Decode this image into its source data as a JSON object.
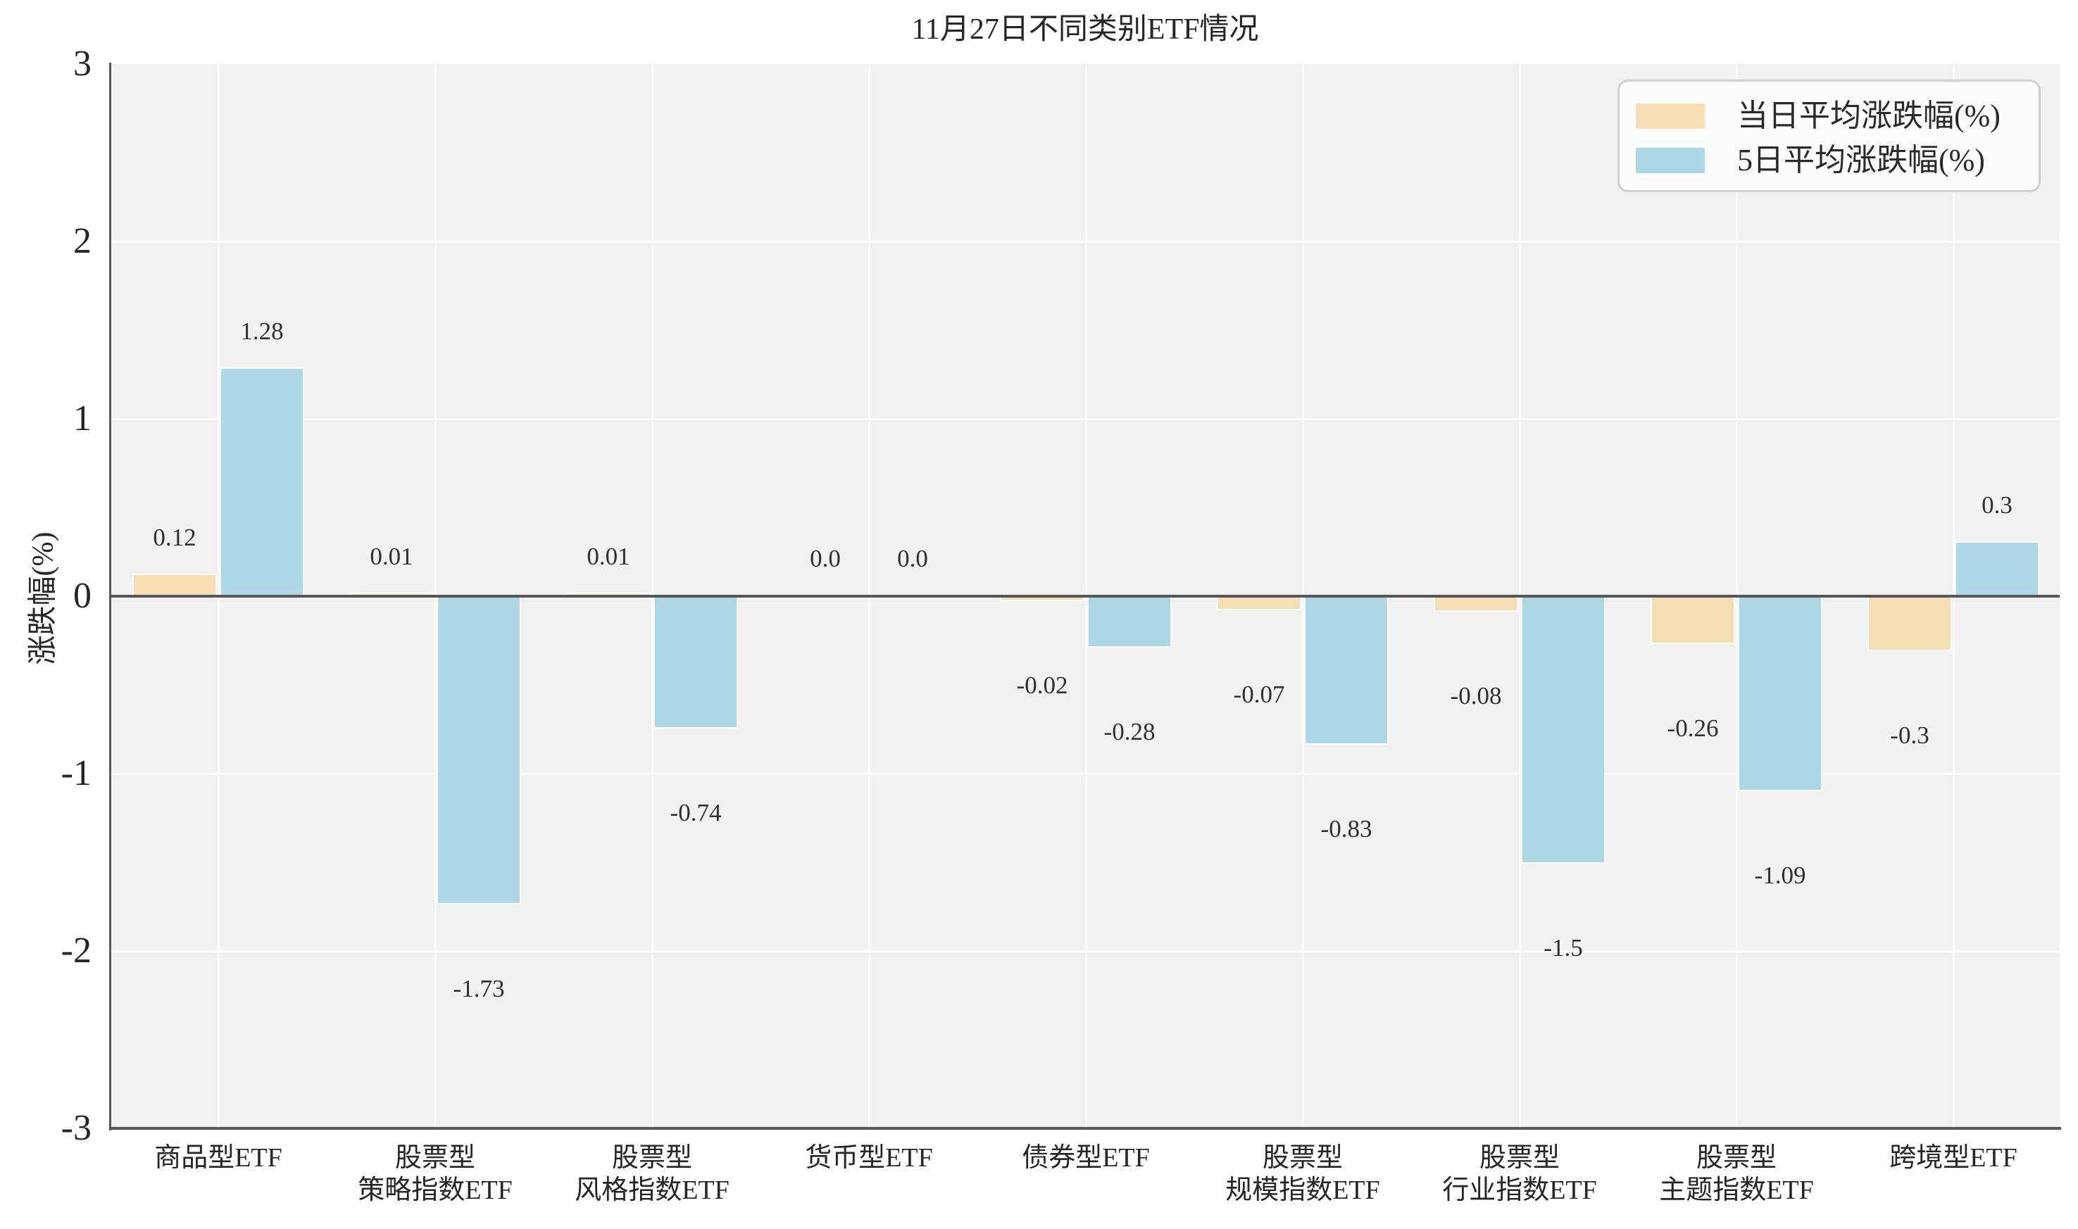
{
  "chart_data": {
    "type": "bar",
    "title": "11月27日不同类别ETF情况",
    "ylabel": "涨跌幅(%)",
    "xlabel": "",
    "ylim": [
      -3,
      3
    ],
    "yticks": [
      3,
      2,
      1,
      0,
      -1,
      -2,
      -3
    ],
    "ytick_labels": [
      "3",
      "2",
      "1",
      "0",
      "-1",
      "-2",
      "-3"
    ],
    "grid": true,
    "legend_position": "upper right",
    "colors": {
      "plot_background": "#f1f1f1",
      "gridline": "#fafafa",
      "spine": "#58585a",
      "series_daily": "#f5deb3",
      "series_5day": "#add8e6",
      "legend_border": "#d0d0d0",
      "legend_background": "#fcfcfc",
      "text": "#262626"
    },
    "categories": [
      "商品型ETF",
      "股票型\n策略指数ETF",
      "股票型\n风格指数ETF",
      "货币型ETF",
      "债券型ETF",
      "股票型\n规模指数ETF",
      "股票型\n行业指数ETF",
      "股票型\n主题指数ETF",
      "跨境型ETF"
    ],
    "series": [
      {
        "name": "当日平均涨跌幅(%)",
        "color": "#f5deb3",
        "values": [
          0.12,
          0.01,
          0.01,
          0.0,
          -0.02,
          -0.07,
          -0.08,
          -0.26,
          -0.3
        ],
        "labels": [
          "0.12",
          "0.01",
          "0.01",
          "0.0",
          "-0.02",
          "-0.07",
          "-0.08",
          "-0.26",
          "-0.3"
        ]
      },
      {
        "name": "5日平均涨跌幅(%)",
        "color": "#add8e6",
        "values": [
          1.28,
          -1.73,
          -0.74,
          0.0,
          -0.28,
          -0.83,
          -1.5,
          -1.09,
          0.3
        ],
        "labels": [
          "1.28",
          "-1.73",
          "-0.74",
          "0.0",
          "-0.28",
          "-0.83",
          "-1.5",
          "-1.09",
          "0.3"
        ]
      }
    ]
  }
}
